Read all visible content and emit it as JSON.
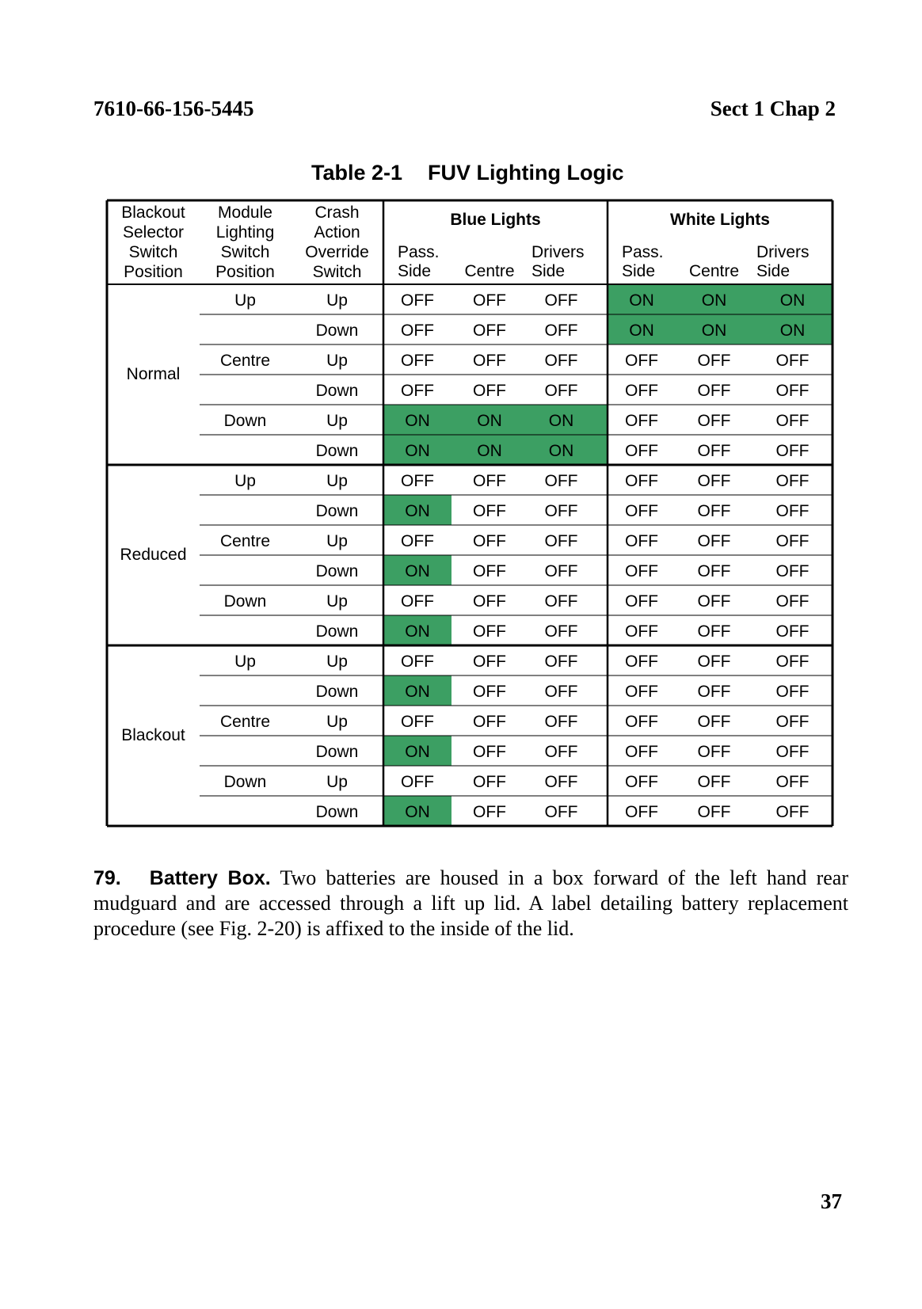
{
  "header": {
    "doc_number": "7610-66-156-5445",
    "section": "Sect 1 Chap 2"
  },
  "table": {
    "title_number": "Table 2-1",
    "title_text": "FUV Lighting Logic",
    "col_headers": {
      "blackout": [
        "Blackout",
        "Selector",
        "Switch",
        "Position"
      ],
      "module": [
        "Module",
        "Lighting",
        "Switch",
        "Position"
      ],
      "crash": [
        "Crash",
        "Action",
        "Override",
        "Switch"
      ],
      "blue_group": "Blue Lights",
      "white_group": "White Lights",
      "pass_side": [
        "Pass.",
        "Side"
      ],
      "centre": "Centre",
      "drivers_side": [
        "Drivers",
        "Side"
      ]
    },
    "groups": [
      {
        "selector": "Normal",
        "rows": [
          {
            "module": "Up",
            "crash": "Up",
            "blue": [
              "OFF",
              "OFF",
              "OFF"
            ],
            "white": [
              "ON",
              "ON",
              "ON"
            ]
          },
          {
            "module": "",
            "crash": "Down",
            "blue": [
              "OFF",
              "OFF",
              "OFF"
            ],
            "white": [
              "ON",
              "ON",
              "ON"
            ]
          },
          {
            "module": "Centre",
            "crash": "Up",
            "blue": [
              "OFF",
              "OFF",
              "OFF"
            ],
            "white": [
              "OFF",
              "OFF",
              "OFF"
            ]
          },
          {
            "module": "",
            "crash": "Down",
            "blue": [
              "OFF",
              "OFF",
              "OFF"
            ],
            "white": [
              "OFF",
              "OFF",
              "OFF"
            ]
          },
          {
            "module": "Down",
            "crash": "Up",
            "blue": [
              "ON",
              "ON",
              "ON"
            ],
            "white": [
              "OFF",
              "OFF",
              "OFF"
            ]
          },
          {
            "module": "",
            "crash": "Down",
            "blue": [
              "ON",
              "ON",
              "ON"
            ],
            "white": [
              "OFF",
              "OFF",
              "OFF"
            ]
          }
        ]
      },
      {
        "selector": "Reduced",
        "rows": [
          {
            "module": "Up",
            "crash": "Up",
            "blue": [
              "OFF",
              "OFF",
              "OFF"
            ],
            "white": [
              "OFF",
              "OFF",
              "OFF"
            ]
          },
          {
            "module": "",
            "crash": "Down",
            "blue": [
              "ON",
              "OFF",
              "OFF"
            ],
            "white": [
              "OFF",
              "OFF",
              "OFF"
            ]
          },
          {
            "module": "Centre",
            "crash": "Up",
            "blue": [
              "OFF",
              "OFF",
              "OFF"
            ],
            "white": [
              "OFF",
              "OFF",
              "OFF"
            ]
          },
          {
            "module": "",
            "crash": "Down",
            "blue": [
              "ON",
              "OFF",
              "OFF"
            ],
            "white": [
              "OFF",
              "OFF",
              "OFF"
            ]
          },
          {
            "module": "Down",
            "crash": "Up",
            "blue": [
              "OFF",
              "OFF",
              "OFF"
            ],
            "white": [
              "OFF",
              "OFF",
              "OFF"
            ]
          },
          {
            "module": "",
            "crash": "Down",
            "blue": [
              "ON",
              "OFF",
              "OFF"
            ],
            "white": [
              "OFF",
              "OFF",
              "OFF"
            ]
          }
        ]
      },
      {
        "selector": "Blackout",
        "rows": [
          {
            "module": "Up",
            "crash": "Up",
            "blue": [
              "OFF",
              "OFF",
              "OFF"
            ],
            "white": [
              "OFF",
              "OFF",
              "OFF"
            ]
          },
          {
            "module": "",
            "crash": "Down",
            "blue": [
              "ON",
              "OFF",
              "OFF"
            ],
            "white": [
              "OFF",
              "OFF",
              "OFF"
            ]
          },
          {
            "module": "Centre",
            "crash": "Up",
            "blue": [
              "OFF",
              "OFF",
              "OFF"
            ],
            "white": [
              "OFF",
              "OFF",
              "OFF"
            ]
          },
          {
            "module": "",
            "crash": "Down",
            "blue": [
              "ON",
              "OFF",
              "OFF"
            ],
            "white": [
              "OFF",
              "OFF",
              "OFF"
            ]
          },
          {
            "module": "Down",
            "crash": "Up",
            "blue": [
              "OFF",
              "OFF",
              "OFF"
            ],
            "white": [
              "OFF",
              "OFF",
              "OFF"
            ]
          },
          {
            "module": "",
            "crash": "Down",
            "blue": [
              "ON",
              "OFF",
              "OFF"
            ],
            "white": [
              "OFF",
              "OFF",
              "OFF"
            ]
          }
        ]
      }
    ],
    "on_color": "#3c9f63"
  },
  "paragraph": {
    "number": "79.",
    "title": "Battery Box.",
    "body": "Two batteries are housed in a box forward of the left hand rear mudguard and are accessed through a lift up lid.  A label detailing battery replacement procedure (see Fig. 2-20) is affixed to the inside of the lid."
  },
  "page_number": "37"
}
